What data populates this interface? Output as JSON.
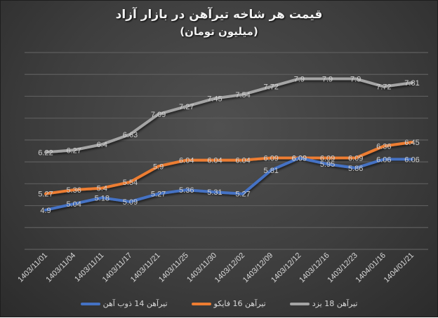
{
  "chart_data": {
    "type": "line",
    "title": "قیمت هر شاخه تیرآهن در بازار آزاد",
    "subtitle": "(میلیون تومان)",
    "xlabel": "",
    "ylabel": "",
    "ylim": [
      4.0,
      8.5
    ],
    "grid": true,
    "y_gridlines": [
      4.0,
      4.5,
      5.0,
      5.5,
      6.0,
      6.5,
      7.0,
      7.5,
      8.0,
      8.5
    ],
    "legend_position": "bottom",
    "categories": [
      "1403/11/01",
      "1403/11/04",
      "1403/11/11",
      "1403/11/17",
      "1403/11/21",
      "1403/11/25",
      "1403/11/30",
      "1403/12/02",
      "1403/12/09",
      "1403/12/12",
      "1403/12/16",
      "1403/12/23",
      "1404/01/16",
      "1404/01/21"
    ],
    "series": [
      {
        "name": "تیرآهن 14 ذوب آهن",
        "color": "#4472C4",
        "values": [
          4.9,
          5.04,
          5.18,
          5.09,
          5.27,
          5.36,
          5.31,
          5.27,
          5.81,
          6.09,
          5.95,
          5.86,
          6.06,
          6.06
        ]
      },
      {
        "name": "تیرآهن 16 فایکو",
        "color": "#ED7D31",
        "values": [
          5.27,
          5.36,
          5.4,
          5.54,
          5.9,
          6.04,
          6.04,
          6.04,
          6.09,
          6.09,
          6.09,
          6.09,
          6.36,
          6.45
        ]
      },
      {
        "name": "تیرآهن 18 یزد",
        "color": "#A5A5A5",
        "values": [
          6.22,
          6.27,
          6.4,
          6.63,
          7.09,
          7.27,
          7.45,
          7.54,
          7.72,
          7.9,
          7.9,
          7.9,
          7.72,
          7.81
        ]
      }
    ]
  }
}
